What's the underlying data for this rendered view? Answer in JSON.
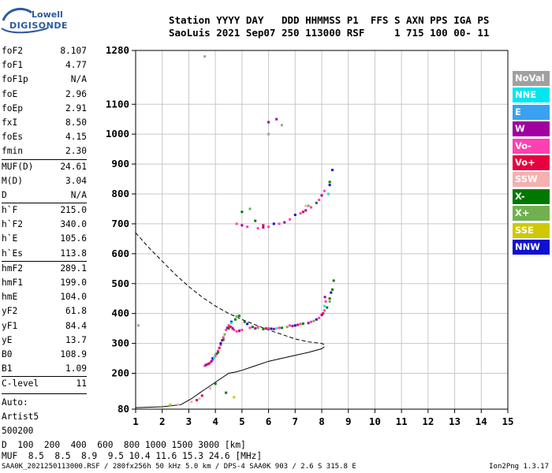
{
  "logo": {
    "line1": "Lowell",
    "line2": "DIGISONDE"
  },
  "header": {
    "line1": "Station YYYY DAY   DDD HHMMSS P1  FFS S AXN PPS IGA PS",
    "line2": "SaoLuis 2021 Sep07 250 113000 RSF     1 715 100 00- 11"
  },
  "params": {
    "group1": [
      {
        "label": "foF2",
        "value": "8.107"
      },
      {
        "label": "foF1",
        "value": "4.77"
      },
      {
        "label": "foF1p",
        "value": "N/A"
      },
      {
        "label": "foE",
        "value": "2.96"
      },
      {
        "label": "foEp",
        "value": "2.91"
      },
      {
        "label": "fxI",
        "value": "8.50"
      },
      {
        "label": "foEs",
        "value": "4.15"
      },
      {
        "label": "fmin",
        "value": "2.30"
      }
    ],
    "group2": [
      {
        "label": "MUF(D)",
        "value": "24.61"
      },
      {
        "label": "M(D)",
        "value": "3.04"
      },
      {
        "label": "D",
        "value": "N/A"
      }
    ],
    "group3": [
      {
        "label": "h`F",
        "value": "215.0"
      },
      {
        "label": "h`F2",
        "value": "340.0"
      },
      {
        "label": "h`E",
        "value": "105.6"
      },
      {
        "label": "h`Es",
        "value": "113.8"
      }
    ],
    "group4": [
      {
        "label": "hmF2",
        "value": "289.1"
      },
      {
        "label": "hmF1",
        "value": "199.0"
      },
      {
        "label": "hmE",
        "value": "104.0"
      },
      {
        "label": "yF2",
        "value": "61.8"
      },
      {
        "label": "yF1",
        "value": "84.4"
      },
      {
        "label": "yE",
        "value": "13.7"
      },
      {
        "label": "B0",
        "value": "108.9"
      },
      {
        "label": "B1",
        "value": "1.09"
      }
    ],
    "group5": [
      {
        "label": "C-level",
        "value": "11"
      }
    ],
    "auto": [
      "Auto:",
      "Artist5",
      "500200"
    ]
  },
  "legend": [
    {
      "label": "NoVal",
      "color": "#a0a0a0"
    },
    {
      "label": "NNE",
      "color": "#00e6f0"
    },
    {
      "label": "E",
      "color": "#3aa0f0"
    },
    {
      "label": "W",
      "color": "#a000a0"
    },
    {
      "label": "Vo-",
      "color": "#ff40b0"
    },
    {
      "label": "Vo+",
      "color": "#e60040"
    },
    {
      "label": "SSW",
      "color": "#f5b0b0"
    },
    {
      "label": "X-",
      "color": "#007800"
    },
    {
      "label": "X+",
      "color": "#70b050"
    },
    {
      "label": "SSE",
      "color": "#d0c800"
    },
    {
      "label": "NNW",
      "color": "#1010d0"
    }
  ],
  "chart_data": {
    "type": "scatter",
    "x_ticks": [
      1,
      2,
      3,
      4,
      5,
      6,
      7,
      8,
      9,
      10,
      11,
      12,
      13,
      14,
      15
    ],
    "y_ticks": [
      80,
      200,
      300,
      400,
      500,
      600,
      700,
      800,
      900,
      1000,
      1100,
      1280
    ],
    "xlim": [
      1,
      15
    ],
    "ylim": [
      80,
      1280
    ],
    "grid": true,
    "series": [
      {
        "color": "#ff40b0",
        "points": [
          [
            3.6,
            225
          ],
          [
            3.7,
            230
          ],
          [
            3.8,
            235
          ],
          [
            3.9,
            245
          ],
          [
            4.0,
            258
          ],
          [
            4.1,
            275
          ],
          [
            4.2,
            295
          ],
          [
            4.3,
            320
          ],
          [
            4.4,
            345
          ],
          [
            4.5,
            360
          ],
          [
            4.6,
            355
          ],
          [
            4.7,
            345
          ],
          [
            4.8,
            340
          ],
          [
            5.0,
            345
          ],
          [
            5.3,
            352
          ],
          [
            5.6,
            355
          ],
          [
            6.0,
            350
          ],
          [
            6.4,
            352
          ],
          [
            6.8,
            360
          ],
          [
            7.2,
            365
          ],
          [
            7.6,
            372
          ],
          [
            7.9,
            385
          ],
          [
            8.1,
            410
          ],
          [
            8.15,
            440
          ],
          [
            4.8,
            700
          ],
          [
            5.2,
            690
          ],
          [
            5.6,
            685
          ],
          [
            6.0,
            690
          ],
          [
            6.4,
            700
          ],
          [
            6.8,
            715
          ],
          [
            7.2,
            735
          ],
          [
            7.6,
            755
          ],
          [
            7.9,
            780
          ],
          [
            8.1,
            810
          ]
        ]
      },
      {
        "color": "#a000a0",
        "points": [
          [
            3.65,
            228
          ],
          [
            3.85,
            240
          ],
          [
            4.05,
            265
          ],
          [
            4.25,
            310
          ],
          [
            4.45,
            352
          ],
          [
            4.65,
            350
          ],
          [
            4.9,
            342
          ],
          [
            5.5,
            350
          ],
          [
            6.2,
            348
          ],
          [
            6.9,
            358
          ],
          [
            7.5,
            368
          ],
          [
            8.0,
            395
          ],
          [
            8.12,
            455
          ],
          [
            5.0,
            695
          ],
          [
            5.8,
            688
          ],
          [
            6.6,
            705
          ],
          [
            7.4,
            745
          ],
          [
            8.0,
            795
          ],
          [
            6.0,
            1040
          ],
          [
            6.3,
            1050
          ]
        ]
      },
      {
        "color": "#007800",
        "points": [
          [
            4.1,
            270
          ],
          [
            4.3,
            312
          ],
          [
            4.5,
            350
          ],
          [
            4.75,
            380
          ],
          [
            4.9,
            392
          ],
          [
            5.1,
            372
          ],
          [
            5.4,
            355
          ],
          [
            5.8,
            348
          ],
          [
            6.5,
            352
          ],
          [
            7.3,
            366
          ],
          [
            8.2,
            420
          ],
          [
            8.3,
            450
          ],
          [
            8.4,
            480
          ],
          [
            8.45,
            510
          ],
          [
            5.0,
            740
          ],
          [
            5.5,
            710
          ],
          [
            7.8,
            770
          ],
          [
            8.3,
            840
          ],
          [
            4.0,
            165
          ],
          [
            4.4,
            135
          ]
        ]
      },
      {
        "color": "#1010d0",
        "points": [
          [
            3.9,
            250
          ],
          [
            4.2,
            300
          ],
          [
            4.6,
            372
          ],
          [
            5.2,
            365
          ],
          [
            6.1,
            349
          ],
          [
            7.0,
            360
          ],
          [
            7.8,
            380
          ],
          [
            8.35,
            470
          ],
          [
            8.4,
            880
          ],
          [
            8.3,
            830
          ],
          [
            7.0,
            730
          ],
          [
            6.2,
            700
          ]
        ]
      },
      {
        "color": "#70b050",
        "points": [
          [
            4.0,
            262
          ],
          [
            4.35,
            330
          ],
          [
            4.8,
            390
          ],
          [
            5.6,
            352
          ],
          [
            6.7,
            355
          ],
          [
            7.7,
            375
          ],
          [
            8.3,
            440
          ],
          [
            5.3,
            750
          ],
          [
            7.5,
            760
          ]
        ]
      },
      {
        "color": "#e60040",
        "points": [
          [
            3.75,
            232
          ],
          [
            4.15,
            285
          ],
          [
            4.55,
            356
          ],
          [
            5.9,
            350
          ],
          [
            7.1,
            362
          ],
          [
            8.05,
            400
          ],
          [
            5.8,
            695
          ],
          [
            7.3,
            740
          ],
          [
            3.3,
            110
          ],
          [
            3.5,
            125
          ]
        ]
      },
      {
        "color": "#00e6f0",
        "points": [
          [
            3.95,
            252
          ],
          [
            4.6,
            368
          ],
          [
            6.3,
            350
          ],
          [
            8.1,
            425
          ],
          [
            8.25,
            800
          ]
        ]
      },
      {
        "color": "#f5b0b0",
        "points": [
          [
            3.1,
            105
          ],
          [
            3.4,
            115
          ],
          [
            3.8,
            150
          ],
          [
            2.6,
            95
          ],
          [
            7.4,
            760
          ]
        ]
      },
      {
        "color": "#a0a0a0",
        "points": [
          [
            3.6,
            1260
          ],
          [
            6.5,
            1030
          ],
          [
            6.0,
            1000
          ],
          [
            1.1,
            360
          ]
        ]
      },
      {
        "color": "#d0c800",
        "points": [
          [
            2.3,
            95
          ],
          [
            4.7,
            120
          ]
        ]
      }
    ],
    "lines": [
      {
        "style": "dashed",
        "points": [
          [
            1,
            670
          ],
          [
            1.5,
            620
          ],
          [
            2,
            575
          ],
          [
            2.5,
            530
          ],
          [
            3,
            490
          ],
          [
            3.5,
            455
          ],
          [
            4,
            425
          ],
          [
            4.5,
            400
          ],
          [
            5,
            380
          ],
          [
            5.5,
            362
          ],
          [
            6,
            345
          ],
          [
            6.5,
            330
          ],
          [
            7,
            315
          ],
          [
            7.5,
            305
          ],
          [
            8,
            300
          ],
          [
            8.1,
            295
          ]
        ]
      },
      {
        "style": "solid",
        "points": [
          [
            1,
            85
          ],
          [
            2,
            88
          ],
          [
            2.7,
            95
          ],
          [
            3.1,
            115
          ],
          [
            3.5,
            140
          ],
          [
            4.0,
            170
          ],
          [
            4.5,
            200
          ],
          [
            4.8,
            205
          ],
          [
            5.0,
            210
          ],
          [
            5.5,
            225
          ],
          [
            6.0,
            240
          ],
          [
            6.5,
            250
          ],
          [
            7.0,
            260
          ],
          [
            7.5,
            270
          ],
          [
            8.0,
            282
          ],
          [
            8.1,
            289
          ]
        ]
      }
    ]
  },
  "bottom": {
    "dist_label": "D",
    "dist_values": "  100  200  400  600  800 1000 1500 3000 [km]",
    "muf_label": "MUF",
    "muf_values": "  8.5  8.5  8.9  9.5 10.4 11.6 15.3 24.6 [MHz]"
  },
  "footer": "SAA0K_2021250113000.RSF / 280fx256h 50 kHz 5.0 km / DPS-4 SAA0K 903 / 2.6 S 315.8 E",
  "version": "Ion2Png 1.3.17"
}
